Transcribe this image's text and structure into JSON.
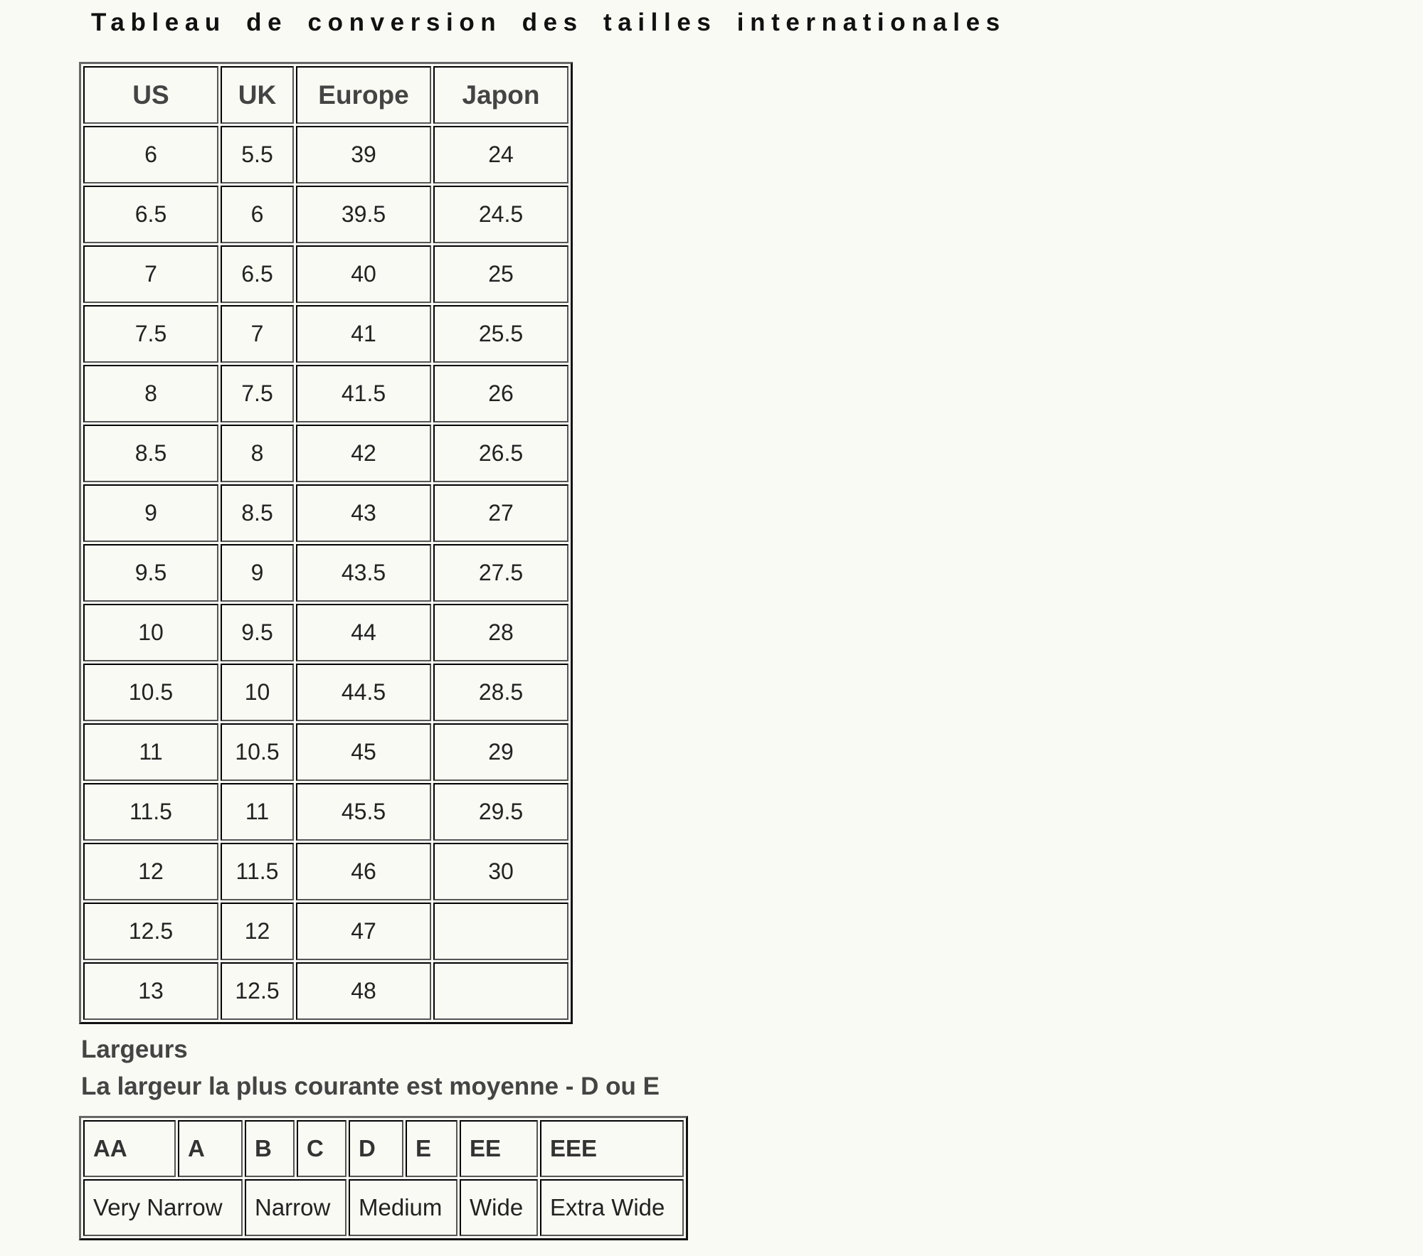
{
  "title": "Tableau de conversion des tailles internationales",
  "size_table": {
    "headers": [
      "US",
      "UK",
      "Europe",
      "Japon"
    ],
    "rows": [
      [
        "6",
        "5.5",
        "39",
        "24"
      ],
      [
        "6.5",
        "6",
        "39.5",
        "24.5"
      ],
      [
        "7",
        "6.5",
        "40",
        "25"
      ],
      [
        "7.5",
        "7",
        "41",
        "25.5"
      ],
      [
        "8",
        "7.5",
        "41.5",
        "26"
      ],
      [
        "8.5",
        "8",
        "42",
        "26.5"
      ],
      [
        "9",
        "8.5",
        "43",
        "27"
      ],
      [
        "9.5",
        "9",
        "43.5",
        "27.5"
      ],
      [
        "10",
        "9.5",
        "44",
        "28"
      ],
      [
        "10.5",
        "10",
        "44.5",
        "28.5"
      ],
      [
        "11",
        "10.5",
        "45",
        "29"
      ],
      [
        "11.5",
        "11",
        "45.5",
        "29.5"
      ],
      [
        "12",
        "11.5",
        "46",
        "30"
      ],
      [
        "12.5",
        "12",
        "47",
        ""
      ],
      [
        "13",
        "12.5",
        "48",
        ""
      ]
    ]
  },
  "widths": {
    "heading": "Largeurs",
    "note": "La largeur la plus courante est moyenne - D ou E",
    "letters": [
      "AA",
      "A",
      "B",
      "C",
      "D",
      "E",
      "EE",
      "EEE"
    ],
    "labels": [
      "Very Narrow",
      "Narrow",
      "Medium",
      "Wide",
      "Extra Wide"
    ]
  }
}
